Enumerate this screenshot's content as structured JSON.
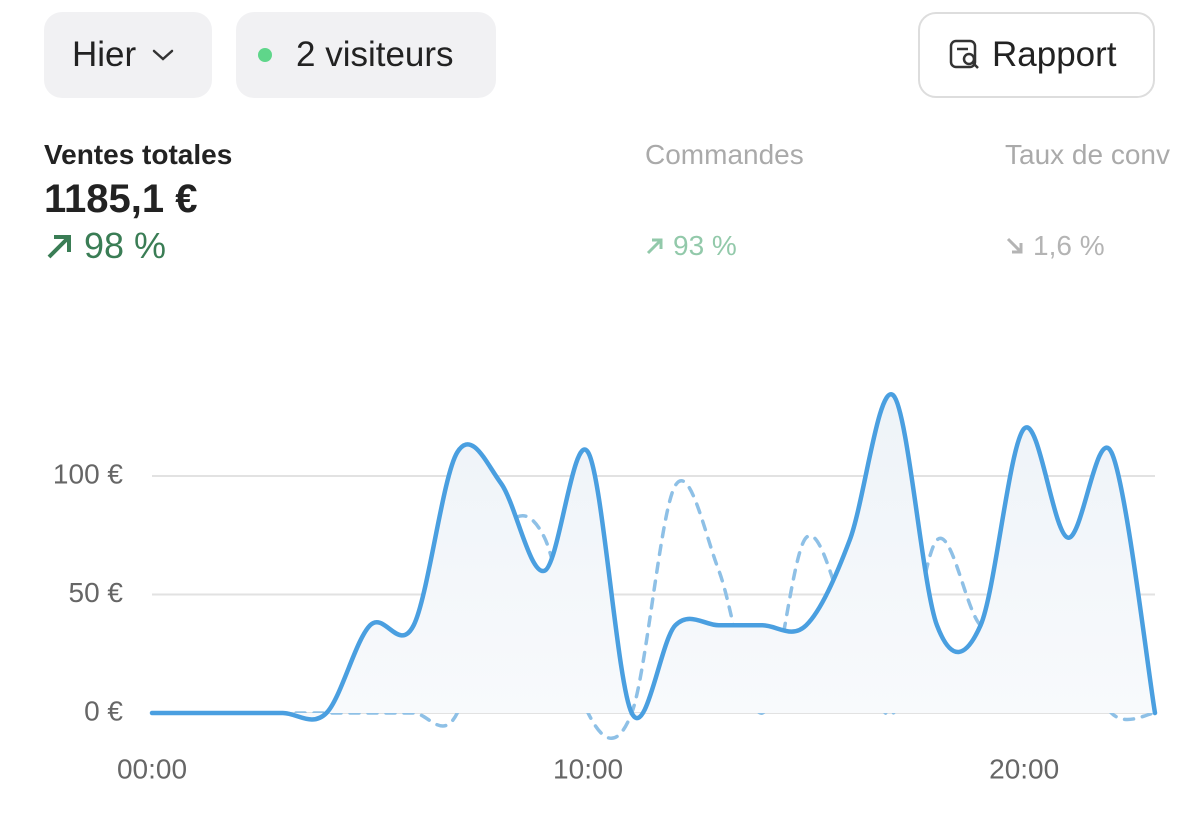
{
  "toolbar": {
    "date_button": "Hier",
    "visitors": "2 visiteurs",
    "report_button": "Rapport"
  },
  "metrics": [
    {
      "label": "Ventes totales",
      "value": "1185,1 €",
      "change": "98 %"
    },
    {
      "label": "Commandes",
      "change": "93 %"
    },
    {
      "label": "Taux de conv",
      "change": "1,6 %"
    }
  ],
  "chart_data": {
    "type": "line",
    "x": [
      0,
      1,
      2,
      3,
      4,
      5,
      6,
      7,
      8,
      9,
      10,
      11,
      12,
      13,
      14,
      15,
      16,
      17,
      18,
      19,
      20,
      21,
      22,
      23
    ],
    "series": [
      {
        "color": "#4a9fe0",
        "style": "solid",
        "fill": true,
        "values": [
          0,
          0,
          0,
          0,
          0,
          37,
          37,
          110,
          97,
          60,
          110,
          0,
          37,
          37,
          37,
          37,
          73,
          134,
          37,
          37,
          120,
          74,
          110,
          0
        ]
      },
      {
        "color": "#8ec0e6",
        "style": "dashed",
        "values": [
          0,
          0,
          0,
          0,
          0,
          0,
          0,
          0,
          74,
          74,
          0,
          0,
          96,
          60,
          0,
          74,
          37,
          0,
          73,
          37,
          37,
          37,
          0,
          0
        ]
      }
    ],
    "xlim": [
      0,
      23
    ],
    "xticks": [
      {
        "value": 0,
        "label": "00:00"
      },
      {
        "value": 10,
        "label": "10:00"
      },
      {
        "value": 20,
        "label": "20:00"
      }
    ],
    "ylim": [
      0,
      140
    ],
    "yticks": [
      {
        "value": 0,
        "label": "0 €"
      },
      {
        "value": 50,
        "label": "50 €"
      },
      {
        "value": 100,
        "label": "100 €"
      }
    ],
    "grid": true
  }
}
